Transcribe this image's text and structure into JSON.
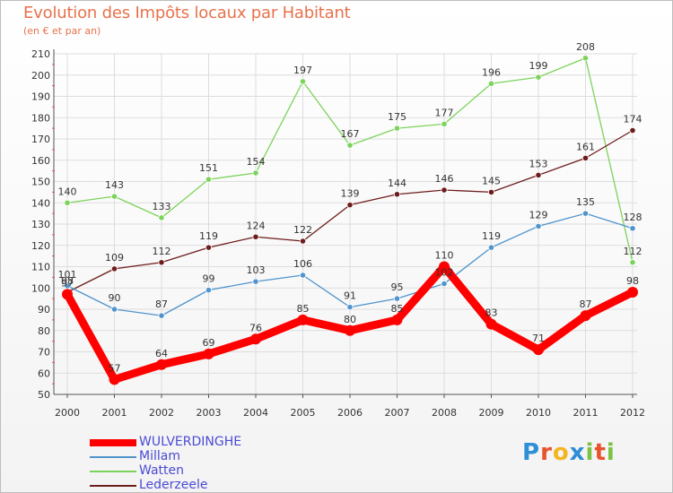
{
  "title": "Evolution des Impôts locaux par Habitant",
  "subtitle": "(en € et par an)",
  "logo": {
    "text": "Proxiti",
    "letters": [
      "P",
      "r",
      "o",
      "x",
      "i",
      "t",
      "i"
    ],
    "colors": [
      "#2f8fd6",
      "#e9522c",
      "#f4b521",
      "#2f8fd6",
      "#7cc242",
      "#e9522c",
      "#7cc242"
    ]
  },
  "chart_data": {
    "type": "line",
    "title": "Evolution des Impôts locaux par Habitant",
    "subtitle": "(en € et par an)",
    "xlabel": "",
    "ylabel": "",
    "x": [
      "2000",
      "2001",
      "2002",
      "2003",
      "2004",
      "2005",
      "2006",
      "2007",
      "2008",
      "2009",
      "2010",
      "2011",
      "2012"
    ],
    "ylim": [
      50,
      210
    ],
    "yticks": [
      50,
      60,
      70,
      80,
      90,
      100,
      110,
      120,
      130,
      140,
      150,
      160,
      170,
      180,
      190,
      200,
      210
    ],
    "grid": true,
    "legend_position": "bottom-left",
    "series": [
      {
        "name": "WULVERDINGHE",
        "color": "#ff0000",
        "values": [
          97,
          57,
          64,
          69,
          76,
          85,
          80,
          85,
          110,
          83,
          71,
          87,
          98
        ],
        "labels": [
          "97",
          "57",
          "64",
          "69",
          "76",
          "85",
          "80",
          "85",
          "110",
          "83",
          "71",
          "87",
          "98"
        ]
      },
      {
        "name": "Millam",
        "color": "#4f94cd",
        "values": [
          101,
          90,
          87,
          99,
          103,
          106,
          91,
          95,
          102,
          119,
          129,
          135,
          128
        ],
        "labels": [
          "101",
          "90",
          "87",
          "99",
          "103",
          "106",
          "91",
          "95",
          "102",
          "119",
          "129",
          "135",
          "128"
        ]
      },
      {
        "name": "Watten",
        "color": "#7cd35a",
        "values": [
          140,
          143,
          133,
          151,
          154,
          197,
          167,
          175,
          177,
          196,
          199,
          208,
          112
        ],
        "labels": [
          "140",
          "143",
          "133",
          "151",
          "154",
          "197",
          "167",
          "175",
          "177",
          "196",
          "199",
          "208",
          "112"
        ]
      },
      {
        "name": "Lederzeele",
        "color": "#6e1c1c",
        "values": [
          98,
          109,
          112,
          119,
          124,
          122,
          139,
          144,
          146,
          145,
          153,
          161,
          174
        ],
        "labels": [
          "98",
          "109",
          "112",
          "119",
          "124",
          "122",
          "139",
          "144",
          "146",
          "145",
          "153",
          "161",
          "174"
        ]
      }
    ]
  }
}
